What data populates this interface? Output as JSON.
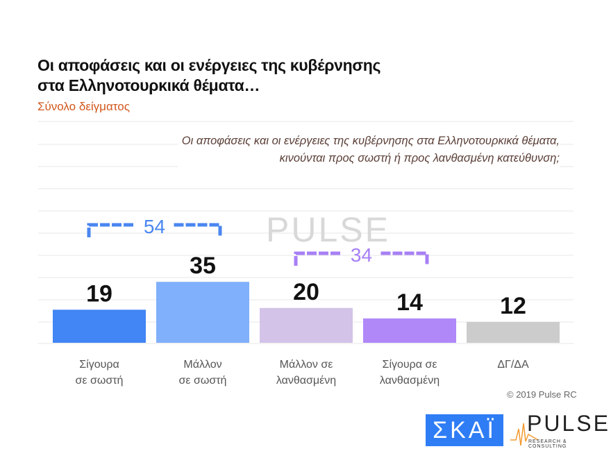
{
  "title_line1": "Οι αποφάσεις και οι ενέργειες της κυβέρνησης",
  "title_line2": "στα Ελληνοτουρκικά θέματα…",
  "subtitle": "Σύνολο δείγματος",
  "question_line1": "Οι αποφάσεις και οι ενέργειες της κυβέρνησης στα Ελληνοτουρκικά θέματα,",
  "question_line2": "κινούνται προς σωστή ή προς λανθασμένη κατεύθυνση;",
  "copyright": "© 2019 Pulse RC",
  "logos": {
    "skai": "ΣΚΑΪ",
    "pulse": "PULSE",
    "pulse_sub": "RESEARCH & CONSULTING"
  },
  "chart_data": {
    "type": "bar",
    "categories": [
      [
        "Σίγουρα",
        "σε σωστή"
      ],
      [
        "Μάλλον",
        "σε σωστή"
      ],
      [
        "Μάλλον σε",
        "λανθασμένη"
      ],
      [
        "Σίγουρα σε",
        "λανθασμένη"
      ],
      [
        "ΔΓ/ΔΑ"
      ]
    ],
    "values": [
      19,
      35,
      20,
      14,
      12
    ],
    "colors": [
      "#4285f4",
      "#80b0fb",
      "#d3c3e8",
      "#b088f8",
      "#cccccc"
    ],
    "brackets": [
      {
        "label": "54",
        "from": 0,
        "to": 1,
        "color": "#4a86f0"
      },
      {
        "label": "34",
        "from": 2,
        "to": 3,
        "color": "#a77ff5"
      }
    ],
    "grid": true
  }
}
